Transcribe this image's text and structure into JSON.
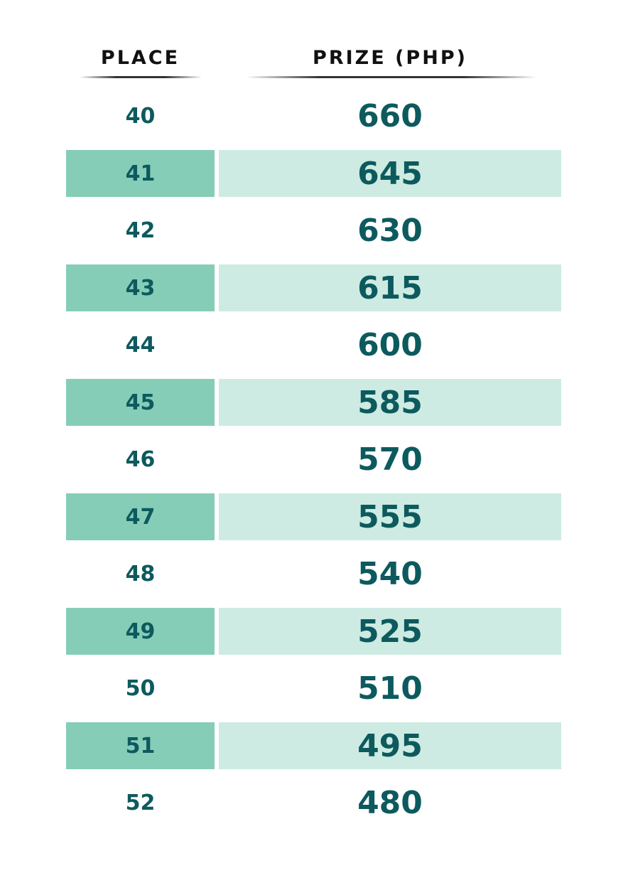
{
  "table": {
    "headers": {
      "place": "PLACE",
      "prize": "PRIZE (PHP)"
    },
    "rows": [
      {
        "place": "40",
        "prize": "660"
      },
      {
        "place": "41",
        "prize": "645"
      },
      {
        "place": "42",
        "prize": "630"
      },
      {
        "place": "43",
        "prize": "615"
      },
      {
        "place": "44",
        "prize": "600"
      },
      {
        "place": "45",
        "prize": "585"
      },
      {
        "place": "46",
        "prize": "570"
      },
      {
        "place": "47",
        "prize": "555"
      },
      {
        "place": "48",
        "prize": "540"
      },
      {
        "place": "49",
        "prize": "525"
      },
      {
        "place": "50",
        "prize": "510"
      },
      {
        "place": "51",
        "prize": "495"
      },
      {
        "place": "52",
        "prize": "480"
      }
    ]
  },
  "colors": {
    "text": "#0d5a5e",
    "header_text": "#111111",
    "place_shade": "#86cdb8",
    "prize_shade": "#cdebe2"
  }
}
